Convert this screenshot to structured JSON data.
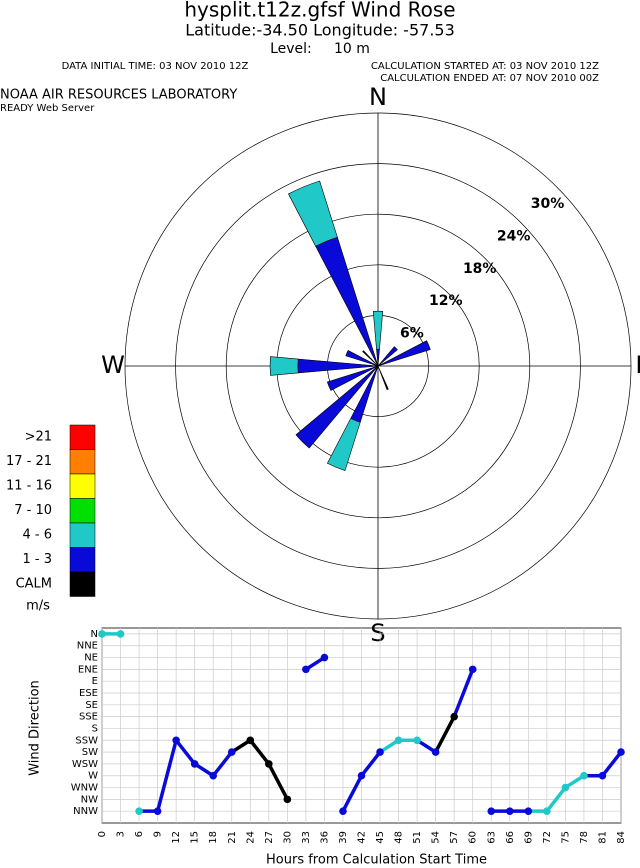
{
  "header": {
    "title": "hysplit.t12z.gfsf Wind Rose",
    "location": "Latitude:-34.50 Longitude: -57.53",
    "level": "Level:     10 m",
    "data_initial": "DATA INITIAL TIME: 03 NOV 2010 12Z",
    "calc_started": "CALCULATION STARTED AT: 03 NOV 2010 12Z",
    "calc_ended": "CALCULATION ENDED AT: 07 NOV 2010 00Z",
    "org": "NOAA AIR RESOURCES LABORATORY",
    "server": "READY Web Server"
  },
  "chart_data": [
    {
      "type": "windrose",
      "compass": [
        "N",
        "E",
        "S",
        "W"
      ],
      "categories": [
        "N",
        "NNE",
        "NE",
        "ENE",
        "E",
        "ESE",
        "SE",
        "SSE",
        "S",
        "SSW",
        "SW",
        "WSW",
        "W",
        "WNW",
        "NW",
        "NNW"
      ],
      "rlim": [
        0,
        30
      ],
      "rticks": [
        {
          "value": 6,
          "label": "6%"
        },
        {
          "value": 12,
          "label": "12%"
        },
        {
          "value": 18,
          "label": "18%"
        },
        {
          "value": 24,
          "label": "24%"
        },
        {
          "value": 30,
          "label": "30%"
        }
      ],
      "legend_unit": "m/s",
      "series": [
        {
          "name": ">21",
          "color": "#ff0000",
          "values": [
            0,
            0,
            0,
            0,
            0,
            0,
            0,
            0,
            0,
            0,
            0,
            0,
            0,
            0,
            0,
            0
          ]
        },
        {
          "name": "17 - 21",
          "color": "#ff8000",
          "values": [
            0,
            0,
            0,
            0,
            0,
            0,
            0,
            0,
            0,
            0,
            0,
            0,
            0,
            0,
            0,
            0
          ]
        },
        {
          "name": "11 - 16",
          "color": "#ffff00",
          "values": [
            0,
            0,
            0,
            0,
            0,
            0,
            0,
            0,
            0,
            0,
            0,
            0,
            0,
            0,
            0,
            0
          ]
        },
        {
          "name": "7 - 10",
          "color": "#00e000",
          "values": [
            0,
            0,
            0,
            0,
            0,
            0,
            0,
            0,
            0,
            0,
            0,
            0,
            0,
            0,
            0,
            0
          ]
        },
        {
          "name": "4 - 6",
          "color": "#20c8c8",
          "values": [
            4.5,
            0,
            0,
            0,
            0,
            0,
            0,
            0,
            0,
            6,
            0,
            0,
            3.3,
            0,
            0,
            7
          ]
        },
        {
          "name": "1 - 3",
          "color": "#0a0ad8",
          "values": [
            2,
            0,
            3,
            6.5,
            0,
            0,
            0,
            0,
            0,
            7,
            12.7,
            6.3,
            9.5,
            4,
            0,
            16
          ]
        },
        {
          "name": "CALM",
          "color": "#000000",
          "values": [
            0,
            0,
            0,
            0,
            0,
            0,
            0,
            3,
            0,
            0,
            0,
            0,
            0,
            0,
            2.5,
            0
          ]
        }
      ]
    },
    {
      "type": "line",
      "x_label": "Hours from Calculation Start Time",
      "y_label": "Wind Direction",
      "x": [
        0,
        3,
        6,
        9,
        12,
        15,
        18,
        21,
        24,
        27,
        30,
        33,
        36,
        39,
        42,
        45,
        48,
        51,
        54,
        57,
        60,
        63,
        66,
        69,
        72,
        75,
        78,
        81,
        84
      ],
      "values": [
        15,
        15,
        0,
        0,
        6,
        4,
        3,
        5,
        6,
        4,
        1,
        12,
        13,
        0,
        3,
        5,
        6,
        6,
        5,
        8,
        12,
        0,
        0,
        0,
        0,
        2,
        3,
        3,
        5
      ],
      "point_colors": [
        "#20c8c8",
        "#20c8c8",
        "#20c8c8",
        "#0a0ad8",
        "#0a0ad8",
        "#0a0ad8",
        "#0a0ad8",
        "#0a0ad8",
        "#000000",
        "#000000",
        "#000000",
        "#0a0ad8",
        "#0a0ad8",
        "#0a0ad8",
        "#0a0ad8",
        "#0a0ad8",
        "#20c8c8",
        "#20c8c8",
        "#0a0ad8",
        "#000000",
        "#0a0ad8",
        "#0a0ad8",
        "#0a0ad8",
        "#0a0ad8",
        "#20c8c8",
        "#20c8c8",
        "#20c8c8",
        "#0a0ad8",
        "#0a0ad8"
      ],
      "xlim": [
        0,
        84
      ],
      "xticks": [
        0,
        3,
        6,
        9,
        12,
        15,
        18,
        21,
        24,
        27,
        30,
        33,
        36,
        39,
        42,
        45,
        48,
        51,
        54,
        57,
        60,
        63,
        66,
        69,
        72,
        75,
        78,
        81,
        84
      ],
      "ylim": [
        -1,
        15.5
      ],
      "yticks": [
        {
          "value": 0,
          "label": "NNW"
        },
        {
          "value": 1,
          "label": "NW"
        },
        {
          "value": 2,
          "label": "WNW"
        },
        {
          "value": 3,
          "label": "W"
        },
        {
          "value": 4,
          "label": "WSW"
        },
        {
          "value": 5,
          "label": "SW"
        },
        {
          "value": 6,
          "label": "SSW"
        },
        {
          "value": 7,
          "label": "S"
        },
        {
          "value": 8,
          "label": "SSE"
        },
        {
          "value": 9,
          "label": "SE"
        },
        {
          "value": 10,
          "label": "ESE"
        },
        {
          "value": 11,
          "label": "E"
        },
        {
          "value": 12,
          "label": "ENE"
        },
        {
          "value": 13,
          "label": "NE"
        },
        {
          "value": 14,
          "label": "NNE"
        },
        {
          "value": 15,
          "label": "N"
        }
      ],
      "grid": true
    }
  ]
}
